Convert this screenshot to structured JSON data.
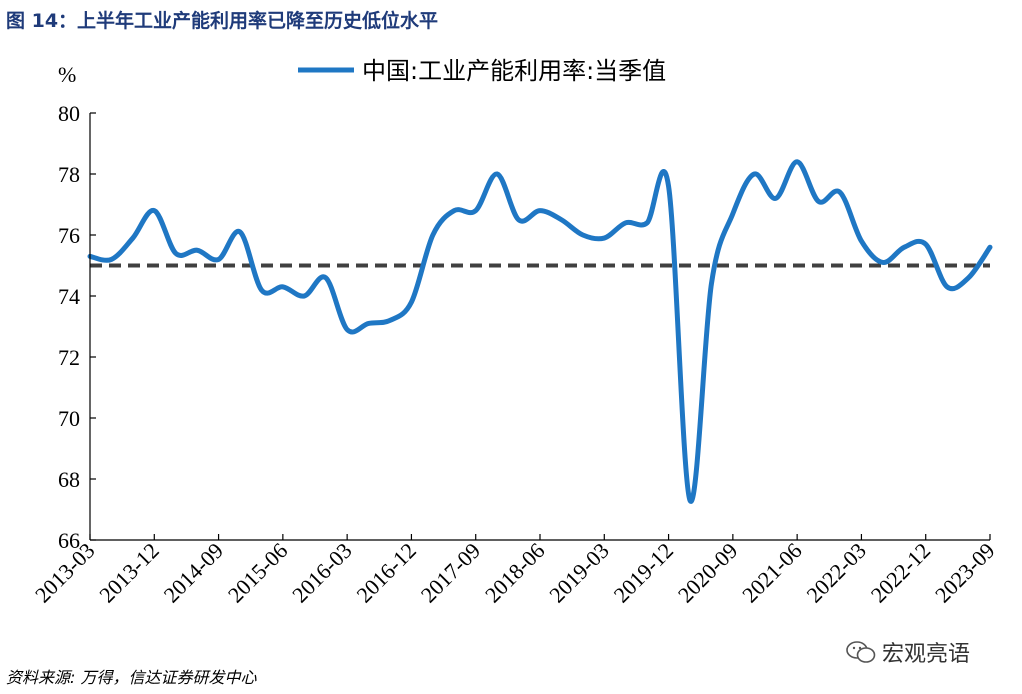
{
  "figure_title": "图 14：上半年工业产能利用率已降至历史低位水平",
  "source_note": "资料来源: 万得，信达证券研发中心",
  "watermark": {
    "text": "宏观亮语",
    "icon": "wechat-icon"
  },
  "chart_data": {
    "type": "line",
    "ylabel": "%",
    "ylim": [
      66,
      80
    ],
    "yticks": [
      66,
      68,
      70,
      72,
      74,
      76,
      78,
      80
    ],
    "xtick_labels": [
      "2013-03",
      "2013-12",
      "2014-09",
      "2015-06",
      "2016-03",
      "2016-12",
      "2017-09",
      "2018-06",
      "2019-03",
      "2019-12",
      "2020-09",
      "2021-06",
      "2022-03",
      "2022-12",
      "2023-09"
    ],
    "reference_line": {
      "value": 75,
      "style": "dashed",
      "color": "#404040"
    },
    "series": [
      {
        "name": "中国:工业产能利用率:当季值",
        "color": "#1f77c4",
        "x": [
          "2013-03",
          "2013-06",
          "2013-09",
          "2013-12",
          "2014-03",
          "2014-06",
          "2014-09",
          "2014-12",
          "2015-03",
          "2015-06",
          "2015-09",
          "2015-12",
          "2016-03",
          "2016-06",
          "2016-09",
          "2016-12",
          "2017-03",
          "2017-06",
          "2017-09",
          "2017-12",
          "2018-03",
          "2018-06",
          "2018-09",
          "2018-12",
          "2019-03",
          "2019-06",
          "2019-09",
          "2019-12",
          "2020-03",
          "2020-06",
          "2020-09",
          "2020-12",
          "2021-03",
          "2021-06",
          "2021-09",
          "2021-12",
          "2022-03",
          "2022-06",
          "2022-09",
          "2022-12",
          "2023-03",
          "2023-06",
          "2023-09"
        ],
        "values": [
          75.3,
          75.2,
          75.9,
          76.8,
          75.4,
          75.5,
          75.2,
          76.1,
          74.2,
          74.3,
          74.0,
          74.6,
          72.9,
          73.1,
          73.2,
          73.8,
          76.0,
          76.8,
          76.8,
          78.0,
          76.5,
          76.8,
          76.5,
          76.0,
          75.9,
          76.4,
          76.4,
          77.6,
          67.3,
          74.4,
          76.7,
          78.0,
          77.2,
          78.4,
          77.1,
          77.4,
          75.8,
          75.1,
          75.6,
          75.7,
          74.3,
          74.6,
          75.6
        ]
      }
    ]
  }
}
